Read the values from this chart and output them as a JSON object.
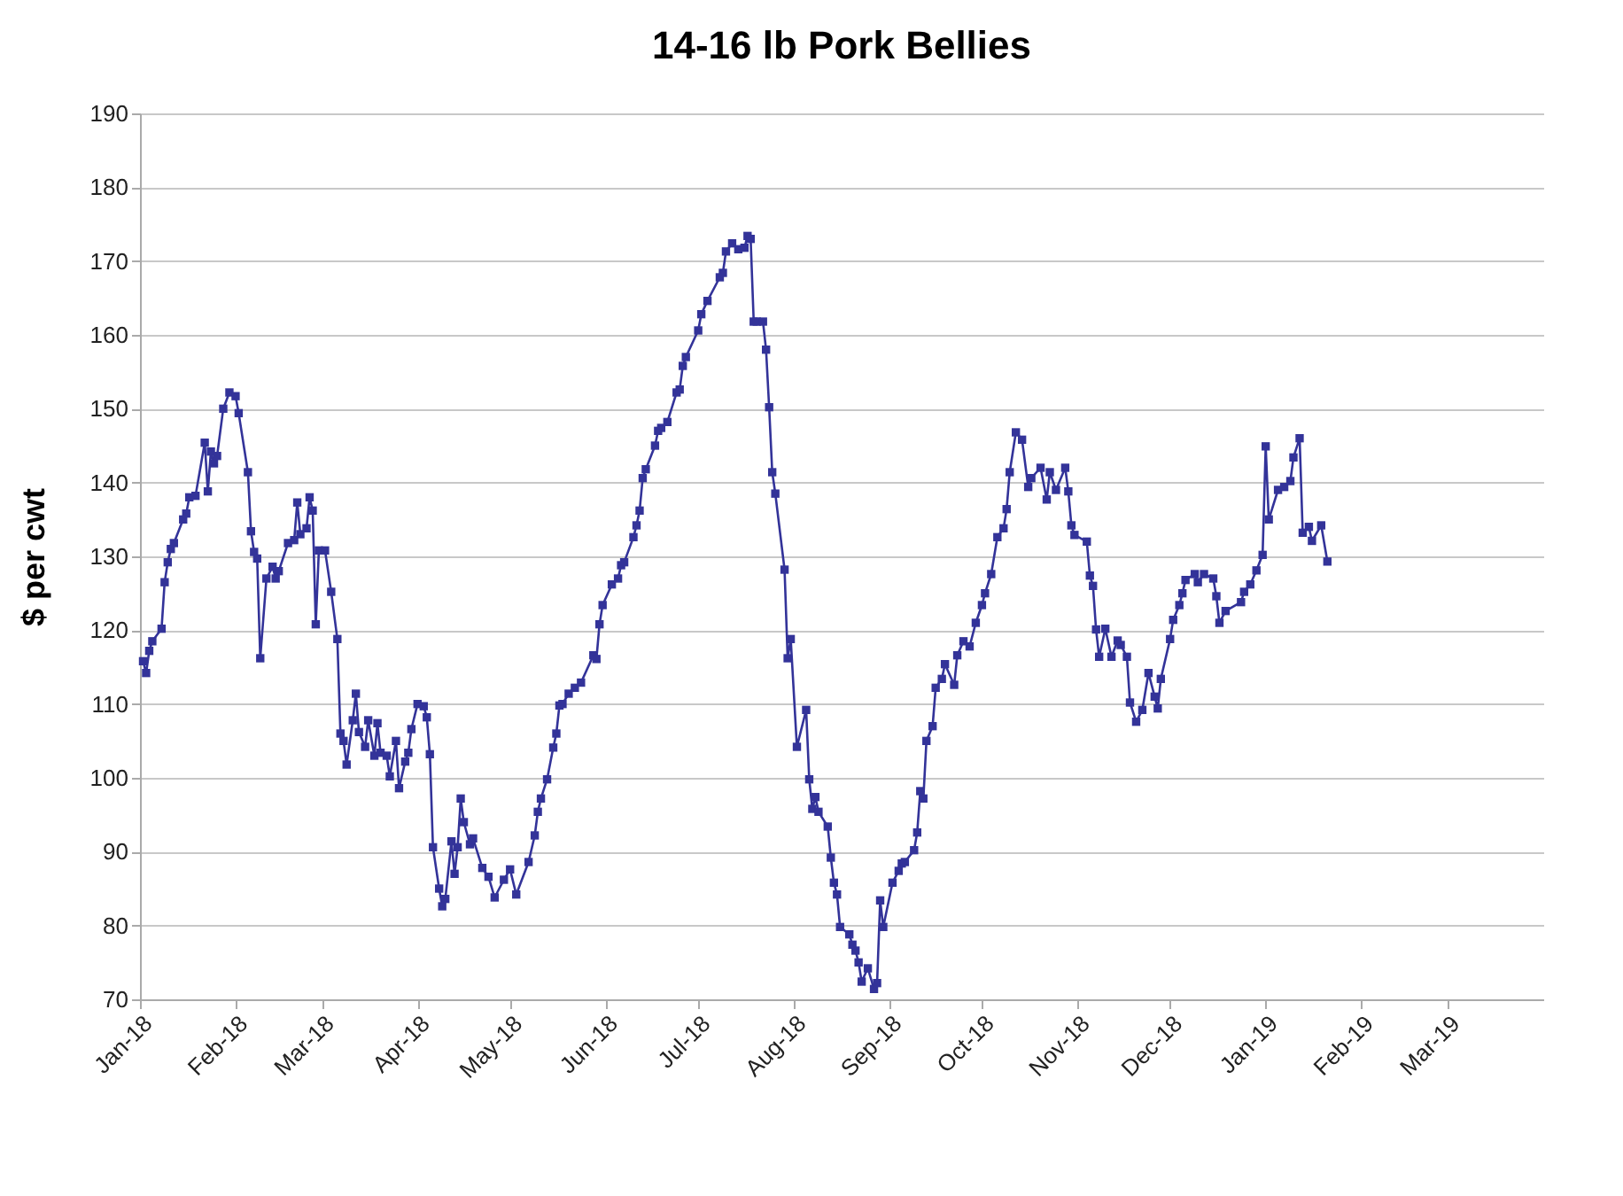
{
  "chart_data": {
    "type": "line",
    "title": "14-16 lb Pork Bellies",
    "ylabel": "$ per cwt",
    "xlim": [
      "2018-01-01",
      "2019-04-01"
    ],
    "xticks": [
      {
        "value": "2018-01-01",
        "label": "Jan-18"
      },
      {
        "value": "2018-02-01",
        "label": "Feb-18"
      },
      {
        "value": "2018-03-01",
        "label": "Mar-18"
      },
      {
        "value": "2018-04-01",
        "label": "Apr-18"
      },
      {
        "value": "2018-05-01",
        "label": "May-18"
      },
      {
        "value": "2018-06-01",
        "label": "Jun-18"
      },
      {
        "value": "2018-07-01",
        "label": "Jul-18"
      },
      {
        "value": "2018-08-01",
        "label": "Aug-18"
      },
      {
        "value": "2018-09-01",
        "label": "Sep-18"
      },
      {
        "value": "2018-10-01",
        "label": "Oct-18"
      },
      {
        "value": "2018-11-01",
        "label": "Nov-18"
      },
      {
        "value": "2018-12-01",
        "label": "Dec-18"
      },
      {
        "value": "2019-01-01",
        "label": "Jan-19"
      },
      {
        "value": "2019-02-01",
        "label": "Feb-19"
      },
      {
        "value": "2019-03-01",
        "label": "Mar-19"
      }
    ],
    "ylim": [
      70,
      190
    ],
    "yticks": [
      70,
      80,
      90,
      100,
      110,
      120,
      130,
      140,
      150,
      160,
      170,
      180,
      190
    ],
    "grid": "y",
    "legend": false,
    "marker": "square",
    "line_style": "solid",
    "x": [
      "2018-01-02",
      "2018-01-03",
      "2018-01-04",
      "2018-01-05",
      "2018-01-08",
      "2018-01-09",
      "2018-01-10",
      "2018-01-11",
      "2018-01-12",
      "2018-01-15",
      "2018-01-16",
      "2018-01-17",
      "2018-01-19",
      "2018-01-22",
      "2018-01-23",
      "2018-01-24",
      "2018-01-25",
      "2018-01-26",
      "2018-01-28",
      "2018-01-30",
      "2018-02-01",
      "2018-02-02",
      "2018-02-05",
      "2018-02-06",
      "2018-02-07",
      "2018-02-08",
      "2018-02-09",
      "2018-02-11",
      "2018-02-13",
      "2018-02-14",
      "2018-02-15",
      "2018-02-18",
      "2018-02-20",
      "2018-02-21",
      "2018-02-22",
      "2018-02-24",
      "2018-02-25",
      "2018-02-26",
      "2018-02-27",
      "2018-02-28",
      "2018-03-02",
      "2018-03-04",
      "2018-03-06",
      "2018-03-07",
      "2018-03-08",
      "2018-03-09",
      "2018-03-11",
      "2018-03-12",
      "2018-03-13",
      "2018-03-15",
      "2018-03-16",
      "2018-03-18",
      "2018-03-19",
      "2018-03-20",
      "2018-03-22",
      "2018-03-23",
      "2018-03-25",
      "2018-03-26",
      "2018-03-28",
      "2018-03-29",
      "2018-03-30",
      "2018-04-01",
      "2018-04-03",
      "2018-04-04",
      "2018-04-05",
      "2018-04-06",
      "2018-04-08",
      "2018-04-09",
      "2018-04-10",
      "2018-04-12",
      "2018-04-13",
      "2018-04-14",
      "2018-04-15",
      "2018-04-16",
      "2018-04-18",
      "2018-04-19",
      "2018-04-22",
      "2018-04-24",
      "2018-04-26",
      "2018-04-29",
      "2018-05-01",
      "2018-05-03",
      "2018-05-07",
      "2018-05-09",
      "2018-05-10",
      "2018-05-11",
      "2018-05-13",
      "2018-05-15",
      "2018-05-16",
      "2018-05-17",
      "2018-05-18",
      "2018-05-20",
      "2018-05-22",
      "2018-05-24",
      "2018-05-28",
      "2018-05-29",
      "2018-05-30",
      "2018-05-31",
      "2018-06-03",
      "2018-06-05",
      "2018-06-06",
      "2018-06-07",
      "2018-06-10",
      "2018-06-11",
      "2018-06-12",
      "2018-06-13",
      "2018-06-14",
      "2018-06-17",
      "2018-06-18",
      "2018-06-19",
      "2018-06-21",
      "2018-06-24",
      "2018-06-25",
      "2018-06-26",
      "2018-06-27",
      "2018-07-01",
      "2018-07-02",
      "2018-07-04",
      "2018-07-08",
      "2018-07-09",
      "2018-07-10",
      "2018-07-12",
      "2018-07-14",
      "2018-07-16",
      "2018-07-17",
      "2018-07-18",
      "2018-07-19",
      "2018-07-20",
      "2018-07-22",
      "2018-07-23",
      "2018-07-24",
      "2018-07-25",
      "2018-07-26",
      "2018-07-29",
      "2018-07-30",
      "2018-07-31",
      "2018-08-02",
      "2018-08-05",
      "2018-08-06",
      "2018-08-07",
      "2018-08-08",
      "2018-08-09",
      "2018-08-12",
      "2018-08-13",
      "2018-08-14",
      "2018-08-15",
      "2018-08-16",
      "2018-08-19",
      "2018-08-20",
      "2018-08-21",
      "2018-08-22",
      "2018-08-23",
      "2018-08-25",
      "2018-08-27",
      "2018-08-28",
      "2018-08-29",
      "2018-08-30",
      "2018-09-02",
      "2018-09-04",
      "2018-09-05",
      "2018-09-06",
      "2018-09-09",
      "2018-09-10",
      "2018-09-11",
      "2018-09-12",
      "2018-09-13",
      "2018-09-15",
      "2018-09-16",
      "2018-09-18",
      "2018-09-19",
      "2018-09-22",
      "2018-09-23",
      "2018-09-25",
      "2018-09-27",
      "2018-09-29",
      "2018-10-01",
      "2018-10-02",
      "2018-10-04",
      "2018-10-06",
      "2018-10-08",
      "2018-10-09",
      "2018-10-10",
      "2018-10-12",
      "2018-10-14",
      "2018-10-16",
      "2018-10-17",
      "2018-10-20",
      "2018-10-22",
      "2018-10-23",
      "2018-10-25",
      "2018-10-28",
      "2018-10-29",
      "2018-10-30",
      "2018-10-31",
      "2018-11-04",
      "2018-11-05",
      "2018-11-06",
      "2018-11-07",
      "2018-11-08",
      "2018-11-10",
      "2018-11-12",
      "2018-11-14",
      "2018-11-15",
      "2018-11-17",
      "2018-11-18",
      "2018-11-20",
      "2018-11-22",
      "2018-11-24",
      "2018-11-26",
      "2018-11-27",
      "2018-11-28",
      "2018-12-01",
      "2018-12-02",
      "2018-12-04",
      "2018-12-05",
      "2018-12-06",
      "2018-12-09",
      "2018-12-10",
      "2018-12-12",
      "2018-12-15",
      "2018-12-16",
      "2018-12-17",
      "2018-12-19",
      "2018-12-24",
      "2018-12-25",
      "2018-12-27",
      "2018-12-29",
      "2018-12-31",
      "2019-01-01",
      "2019-01-02",
      "2019-01-05",
      "2019-01-07",
      "2019-01-09",
      "2019-01-10",
      "2019-01-12",
      "2019-01-13",
      "2019-01-15",
      "2019-01-16",
      "2019-01-19",
      "2019-01-21"
    ],
    "series": [
      {
        "color": "#333399",
        "values": [
          115.8,
          114.2,
          117.2,
          118.5,
          120.2,
          126.5,
          129.2,
          131,
          131.8,
          135,
          135.8,
          138,
          138.2,
          145.4,
          138.8,
          144.2,
          142.6,
          143.6,
          150,
          152.2,
          151.7,
          149.4,
          141.4,
          133.4,
          130.6,
          129.7,
          116.2,
          127,
          128.6,
          127,
          128,
          131.8,
          132.2,
          137.3,
          133,
          133.8,
          138,
          136.2,
          120.8,
          130.8,
          130.8,
          125.2,
          118.8,
          106,
          105,
          101.8,
          107.8,
          111.4,
          106.2,
          104.2,
          107.8,
          103,
          107.4,
          103.4,
          103,
          100.2,
          105,
          98.6,
          102.2,
          103.4,
          106.6,
          110,
          109.7,
          108.2,
          103.2,
          90.6,
          85,
          82.6,
          83.6,
          91.4,
          87,
          90.6,
          97.2,
          94,
          91,
          91.8,
          87.8,
          86.6,
          83.8,
          86.2,
          87.6,
          84.2,
          88.6,
          92.2,
          95.4,
          97.2,
          99.8,
          104.1,
          106,
          109.8,
          110,
          111.4,
          112.2,
          112.9,
          116.6,
          116.1,
          120.8,
          123.4,
          126.2,
          127,
          128.8,
          129.2,
          132.6,
          134.2,
          136.2,
          140.6,
          141.8,
          145,
          147,
          147.4,
          148.2,
          152.2,
          152.6,
          155.8,
          157,
          160.6,
          162.8,
          164.6,
          167.8,
          168.4,
          171.3,
          172.4,
          171.6,
          171.8,
          173.4,
          173,
          161.8,
          161.8,
          161.8,
          158,
          150.2,
          141.4,
          138.5,
          128.2,
          116.2,
          118.8,
          104.2,
          109.2,
          99.8,
          95.8,
          97.4,
          95.4,
          93.4,
          89.2,
          85.8,
          84.2,
          79.8,
          78.8,
          77.4,
          76.6,
          75,
          72.4,
          74.2,
          71.4,
          72.2,
          83.4,
          79.8,
          85.8,
          87.4,
          88.4,
          88.6,
          90.2,
          92.6,
          98.2,
          97.2,
          105,
          107,
          112.2,
          113.4,
          115.4,
          112.6,
          116.6,
          118.5,
          117.8,
          121,
          123.4,
          125,
          127.6,
          132.6,
          133.8,
          136.4,
          141.4,
          146.8,
          145.8,
          139.4,
          140.6,
          142,
          137.7,
          141.4,
          139,
          142,
          138.8,
          134.2,
          132.9,
          132,
          127.4,
          126,
          120.1,
          116.4,
          120.2,
          116.4,
          118.6,
          118,
          116.4,
          110.2,
          107.6,
          109.2,
          114.2,
          111,
          109.4,
          113.4,
          118.8,
          121.4,
          123.4,
          125,
          126.8,
          127.6,
          126.5,
          127.6,
          127,
          124.6,
          121,
          122.6,
          123.8,
          125.2,
          126.2,
          128.1,
          130.2,
          144.9,
          135,
          139,
          139.4,
          140.2,
          143.4,
          146,
          133.2,
          134,
          132.1,
          134.2,
          129.3
        ]
      }
    ]
  }
}
